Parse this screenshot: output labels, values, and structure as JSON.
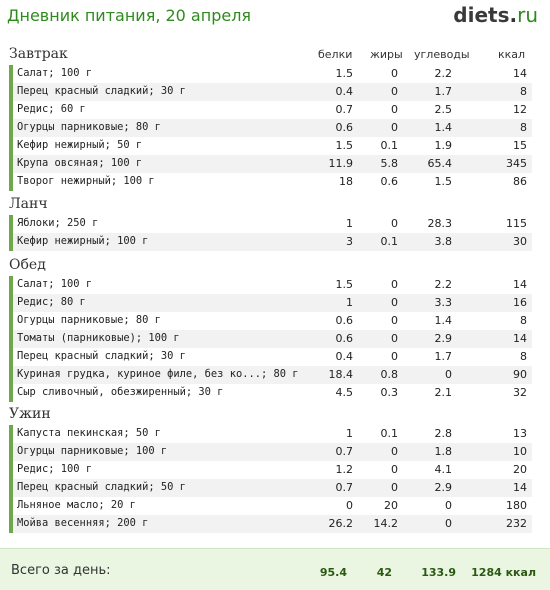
{
  "header": {
    "title": "Дневник питания, 20 апреля",
    "logo_main": "diets",
    "logo_dot": ".",
    "logo_tld": "ru"
  },
  "columns": {
    "protein": "белки",
    "fat": "жиры",
    "carbs": "углеводы",
    "kcal": "ккал"
  },
  "meals": [
    {
      "title": "Завтрак",
      "items": [
        {
          "name": "Салат; 100 г",
          "protein": "1.5",
          "fat": "0",
          "carbs": "2.2",
          "kcal": "14"
        },
        {
          "name": "Перец красный сладкий; 30 г",
          "protein": "0.4",
          "fat": "0",
          "carbs": "1.7",
          "kcal": "8"
        },
        {
          "name": "Редис; 60 г",
          "protein": "0.7",
          "fat": "0",
          "carbs": "2.5",
          "kcal": "12"
        },
        {
          "name": "Огурцы парниковые; 80 г",
          "protein": "0.6",
          "fat": "0",
          "carbs": "1.4",
          "kcal": "8"
        },
        {
          "name": "Кефир нежирный; 50 г",
          "protein": "1.5",
          "fat": "0.1",
          "carbs": "1.9",
          "kcal": "15"
        },
        {
          "name": "Крупа овсяная; 100 г",
          "protein": "11.9",
          "fat": "5.8",
          "carbs": "65.4",
          "kcal": "345"
        },
        {
          "name": "Творог нежирный; 100 г",
          "protein": "18",
          "fat": "0.6",
          "carbs": "1.5",
          "kcal": "86"
        }
      ]
    },
    {
      "title": "Ланч",
      "items": [
        {
          "name": "Яблоки; 250 г",
          "protein": "1",
          "fat": "0",
          "carbs": "28.3",
          "kcal": "115"
        },
        {
          "name": "Кефир нежирный; 100 г",
          "protein": "3",
          "fat": "0.1",
          "carbs": "3.8",
          "kcal": "30"
        }
      ]
    },
    {
      "title": "Обед",
      "items": [
        {
          "name": "Салат; 100 г",
          "protein": "1.5",
          "fat": "0",
          "carbs": "2.2",
          "kcal": "14"
        },
        {
          "name": "Редис; 80 г",
          "protein": "1",
          "fat": "0",
          "carbs": "3.3",
          "kcal": "16"
        },
        {
          "name": "Огурцы парниковые; 80 г",
          "protein": "0.6",
          "fat": "0",
          "carbs": "1.4",
          "kcal": "8"
        },
        {
          "name": "Томаты (парниковые); 100 г",
          "protein": "0.6",
          "fat": "0",
          "carbs": "2.9",
          "kcal": "14"
        },
        {
          "name": "Перец красный сладкий; 30 г",
          "protein": "0.4",
          "fat": "0",
          "carbs": "1.7",
          "kcal": "8"
        },
        {
          "name": "Куриная грудка, куриное филе, без ко...; 80 г",
          "protein": "18.4",
          "fat": "0.8",
          "carbs": "0",
          "kcal": "90"
        },
        {
          "name": "Сыр сливочный, обезжиренный; 30 г",
          "protein": "4.5",
          "fat": "0.3",
          "carbs": "2.1",
          "kcal": "32"
        }
      ]
    },
    {
      "title": "Ужин",
      "items": [
        {
          "name": "Капуста пекинская; 50 г",
          "protein": "1",
          "fat": "0.1",
          "carbs": "2.8",
          "kcal": "13"
        },
        {
          "name": "Огурцы парниковые; 100 г",
          "protein": "0.7",
          "fat": "0",
          "carbs": "1.8",
          "kcal": "10"
        },
        {
          "name": "Редис; 100 г",
          "protein": "1.2",
          "fat": "0",
          "carbs": "4.1",
          "kcal": "20"
        },
        {
          "name": "Перец красный сладкий; 50 г",
          "protein": "0.7",
          "fat": "0",
          "carbs": "2.9",
          "kcal": "14"
        },
        {
          "name": "Льняное масло; 20 г",
          "protein": "0",
          "fat": "20",
          "carbs": "0",
          "kcal": "180"
        },
        {
          "name": "Мойва весенняя; 200 г",
          "protein": "26.2",
          "fat": "14.2",
          "carbs": "0",
          "kcal": "232"
        }
      ]
    }
  ],
  "total": {
    "label": "Всего за день:",
    "protein": "95.4",
    "fat": "42",
    "carbs": "133.9",
    "kcal": "1284 ккал"
  },
  "colors": {
    "accent": "#2e8b1e",
    "bullet": "#6fa84a",
    "total_bg": "#eaf5e2"
  }
}
